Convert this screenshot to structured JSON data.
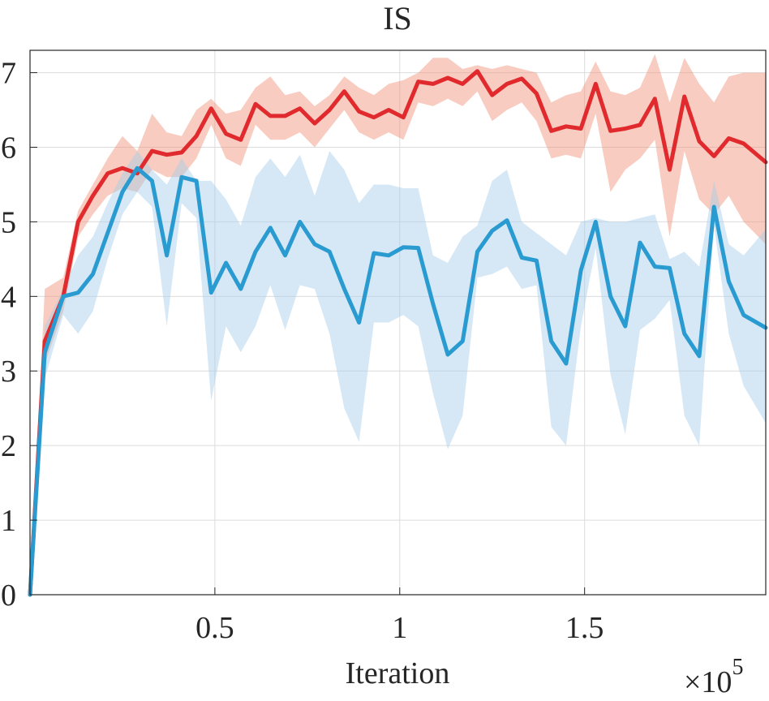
{
  "chart_data": {
    "type": "line",
    "title": "IS",
    "xlabel": "Iteration",
    "ylabel": "",
    "x_multiplier_label": "×10",
    "x_multiplier_exponent": "5",
    "xlim": [
      0.0,
      1.99
    ],
    "ylim": [
      0,
      7.3
    ],
    "xticks": [
      0.5,
      1,
      1.5
    ],
    "xtick_labels": [
      "0.5",
      "1",
      "1.5"
    ],
    "yticks": [
      0,
      1,
      2,
      3,
      4,
      5,
      6,
      7
    ],
    "ytick_labels": [
      "0",
      "1",
      "2",
      "3",
      "4",
      "5",
      "6",
      "7"
    ],
    "grid": true,
    "x": [
      0.0,
      0.04,
      0.09,
      0.13,
      0.17,
      0.21,
      0.25,
      0.29,
      0.33,
      0.37,
      0.41,
      0.45,
      0.49,
      0.53,
      0.57,
      0.61,
      0.65,
      0.69,
      0.73,
      0.77,
      0.81,
      0.85,
      0.89,
      0.93,
      0.97,
      1.01,
      1.05,
      1.09,
      1.13,
      1.17,
      1.21,
      1.25,
      1.29,
      1.33,
      1.37,
      1.41,
      1.45,
      1.49,
      1.53,
      1.57,
      1.61,
      1.65,
      1.69,
      1.73,
      1.77,
      1.81,
      1.85,
      1.89,
      1.93,
      1.99
    ],
    "series": [
      {
        "color": "#e12a2e",
        "band_color": "#f08d74",
        "values": [
          0.0,
          3.4,
          4.0,
          5.0,
          5.35,
          5.65,
          5.72,
          5.65,
          5.95,
          5.9,
          5.93,
          6.15,
          6.52,
          6.18,
          6.1,
          6.58,
          6.42,
          6.42,
          6.52,
          6.32,
          6.5,
          6.75,
          6.48,
          6.4,
          6.5,
          6.4,
          6.88,
          6.85,
          6.93,
          6.85,
          7.02,
          6.7,
          6.85,
          6.92,
          6.72,
          6.22,
          6.28,
          6.25,
          6.85,
          6.22,
          6.25,
          6.3,
          6.65,
          5.7,
          6.68,
          6.08,
          5.88,
          6.12,
          6.05,
          5.8
        ],
        "lower": [
          0.0,
          3.1,
          3.8,
          4.8,
          5.1,
          5.35,
          5.45,
          5.4,
          5.7,
          5.6,
          5.6,
          5.85,
          6.3,
          5.85,
          5.75,
          6.3,
          6.1,
          6.1,
          6.2,
          6.0,
          6.25,
          6.5,
          6.2,
          6.1,
          6.2,
          6.1,
          6.6,
          6.55,
          6.65,
          6.55,
          6.75,
          6.35,
          6.5,
          6.6,
          6.35,
          5.85,
          5.9,
          5.85,
          6.45,
          5.4,
          5.7,
          5.85,
          6.1,
          4.8,
          5.95,
          5.3,
          5.1,
          5.35,
          5.0,
          4.7
        ],
        "upper": [
          0.0,
          4.1,
          4.25,
          5.15,
          5.5,
          5.85,
          6.15,
          5.95,
          6.45,
          6.2,
          6.15,
          6.5,
          6.65,
          6.45,
          6.5,
          6.8,
          6.95,
          6.7,
          6.75,
          6.55,
          6.7,
          6.95,
          6.8,
          6.7,
          6.85,
          6.9,
          7.0,
          7.2,
          7.2,
          7.05,
          7.1,
          7.05,
          7.1,
          7.05,
          7.0,
          6.6,
          6.7,
          6.75,
          7.15,
          6.75,
          6.7,
          6.8,
          7.25,
          6.6,
          7.2,
          6.85,
          6.6,
          6.95,
          7.0,
          7.0
        ]
      },
      {
        "color": "#2a9bd0",
        "band_color": "#a5cbea",
        "values": [
          0.0,
          3.25,
          4.0,
          4.05,
          4.3,
          4.85,
          5.4,
          5.72,
          5.55,
          4.55,
          5.6,
          5.55,
          4.05,
          4.45,
          4.1,
          4.6,
          4.92,
          4.55,
          5.0,
          4.7,
          4.6,
          4.1,
          3.65,
          4.58,
          4.55,
          4.66,
          4.65,
          3.9,
          3.22,
          3.4,
          4.6,
          4.88,
          5.02,
          4.52,
          4.48,
          3.4,
          3.1,
          4.35,
          5.0,
          4.0,
          3.6,
          4.72,
          4.4,
          4.38,
          3.5,
          3.2,
          5.2,
          4.2,
          3.75,
          3.58
        ],
        "lower": [
          0.0,
          2.9,
          3.75,
          3.5,
          3.8,
          4.5,
          5.1,
          5.4,
          5.2,
          3.6,
          5.25,
          5.05,
          2.6,
          3.6,
          3.25,
          3.6,
          4.15,
          3.55,
          4.15,
          4.1,
          3.5,
          2.5,
          2.05,
          3.65,
          3.65,
          3.75,
          3.6,
          2.7,
          1.95,
          2.4,
          4.25,
          4.3,
          4.4,
          4.1,
          4.15,
          2.25,
          2.0,
          3.6,
          4.65,
          2.95,
          2.15,
          3.55,
          3.7,
          3.95,
          2.4,
          2.0,
          4.95,
          3.5,
          2.8,
          2.3
        ],
        "upper": [
          0.0,
          3.6,
          4.1,
          4.55,
          4.8,
          5.25,
          5.65,
          5.95,
          5.7,
          5.5,
          5.85,
          5.55,
          5.55,
          5.3,
          4.95,
          5.6,
          5.85,
          5.6,
          5.9,
          5.35,
          5.95,
          5.7,
          5.25,
          5.5,
          5.5,
          5.45,
          5.45,
          4.55,
          4.45,
          4.8,
          4.95,
          5.55,
          5.7,
          5.0,
          4.85,
          4.7,
          4.55,
          5.0,
          5.05,
          5.0,
          5.0,
          5.05,
          5.1,
          4.5,
          4.6,
          4.4,
          5.55,
          4.7,
          4.55,
          4.9
        ]
      }
    ]
  }
}
